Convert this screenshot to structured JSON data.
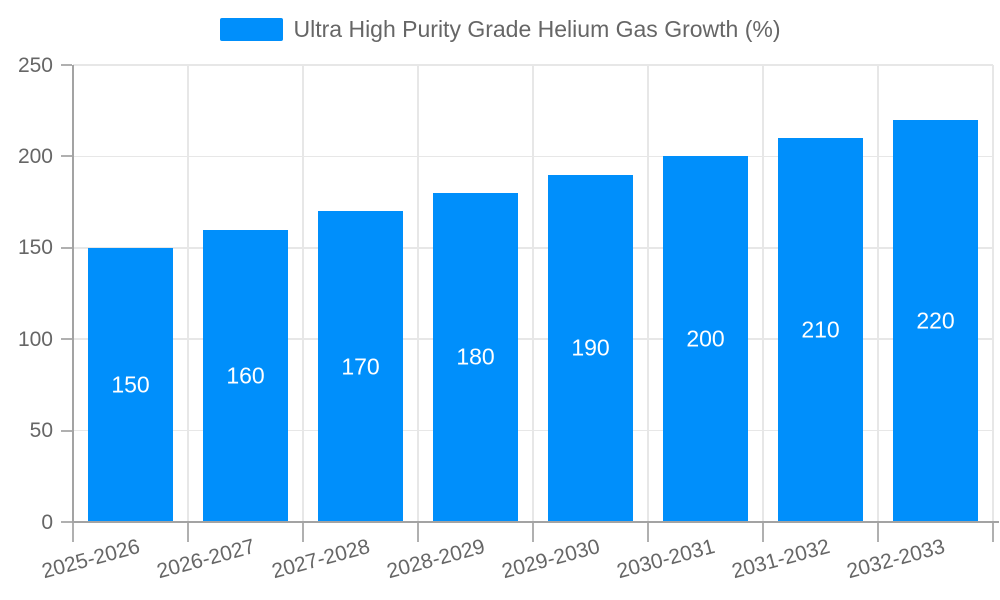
{
  "chart_data": {
    "type": "bar",
    "title": "",
    "xlabel": "",
    "ylabel": "",
    "categories": [
      "2025-2026",
      "2026-2027",
      "2027-2028",
      "2028-2029",
      "2029-2030",
      "2030-2031",
      "2031-2032",
      "2032-2033"
    ],
    "series": [
      {
        "name": "Ultra High Purity Grade Helium Gas Growth (%)",
        "values": [
          150,
          160,
          170,
          180,
          190,
          200,
          210,
          220
        ]
      }
    ],
    "y_ticks": [
      0,
      50,
      100,
      150,
      200,
      250
    ],
    "ylim": [
      0,
      250
    ],
    "grid": true,
    "legend_position": "top",
    "value_labels": "centered-inside-bars",
    "x_label_rotation_deg": -15,
    "colors": {
      "bar": "#008FFB",
      "axis_text": "#666666",
      "grid": "#e7e7e7",
      "axis_line": "#a3a3a3",
      "tick": "#b0b0b0",
      "value_label": "#ffffff",
      "background": "#ffffff"
    }
  }
}
